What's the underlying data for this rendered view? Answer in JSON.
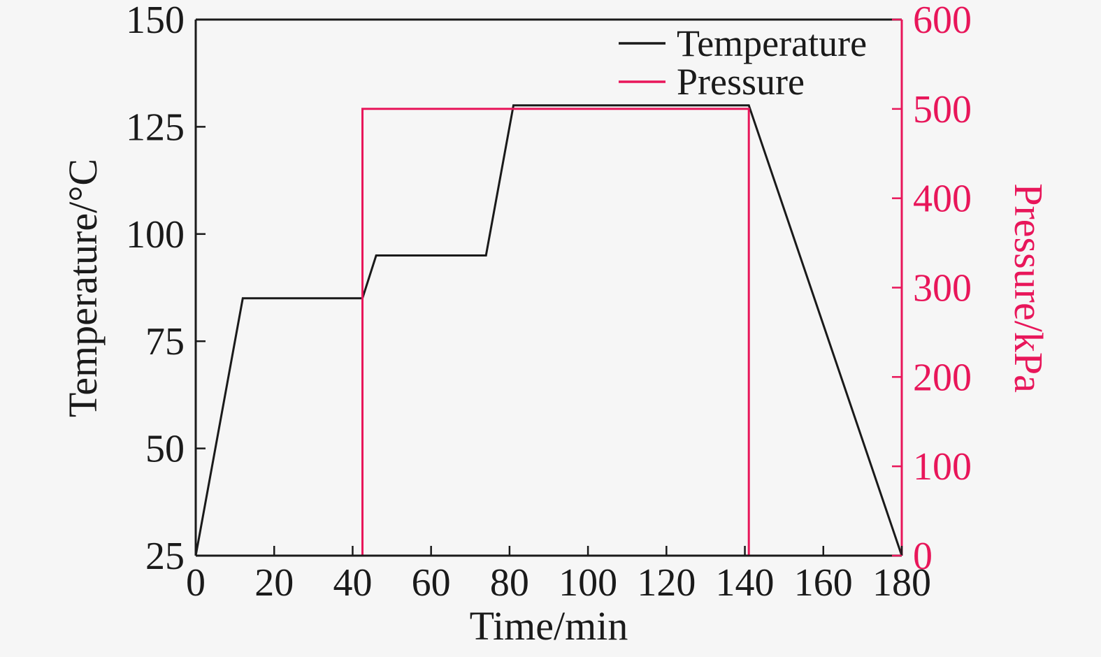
{
  "chart_data": {
    "type": "line",
    "title": "",
    "xlabel": "Time/min",
    "ylabel_left": "Temperature/°C",
    "ylabel_right": "Pressure/kPa",
    "xlim": [
      0,
      180
    ],
    "xticks": [
      0,
      20,
      40,
      60,
      80,
      100,
      120,
      140,
      160,
      180
    ],
    "ylim_left": [
      25,
      150
    ],
    "yticks_left": [
      25,
      50,
      75,
      100,
      125,
      150
    ],
    "ylim_right": [
      0,
      600
    ],
    "yticks_right": [
      0,
      100,
      200,
      300,
      400,
      500,
      600
    ],
    "grid": false,
    "legend_position": "top-right-inside",
    "colors": {
      "axis": "#1a1a1a",
      "temperature": "#1a1a1a",
      "pressure": "#e8165a",
      "background": "#f6f6f6"
    },
    "series": [
      {
        "name": "Temperature",
        "axis": "left",
        "color": "#1a1a1a",
        "points": [
          [
            0,
            25
          ],
          [
            12,
            85
          ],
          [
            42.5,
            85
          ],
          [
            46,
            95
          ],
          [
            74,
            95
          ],
          [
            81,
            130
          ],
          [
            141,
            130
          ],
          [
            180,
            25
          ]
        ]
      },
      {
        "name": "Pressure",
        "axis": "right",
        "color": "#e8165a",
        "points": [
          [
            0,
            0
          ],
          [
            42.5,
            0
          ],
          [
            42.5,
            500
          ],
          [
            141,
            500
          ],
          [
            141,
            0
          ],
          [
            180,
            0
          ]
        ]
      }
    ],
    "legend": [
      {
        "label": "Temperature",
        "color": "#1a1a1a"
      },
      {
        "label": "Pressure",
        "color": "#e8165a"
      }
    ]
  }
}
